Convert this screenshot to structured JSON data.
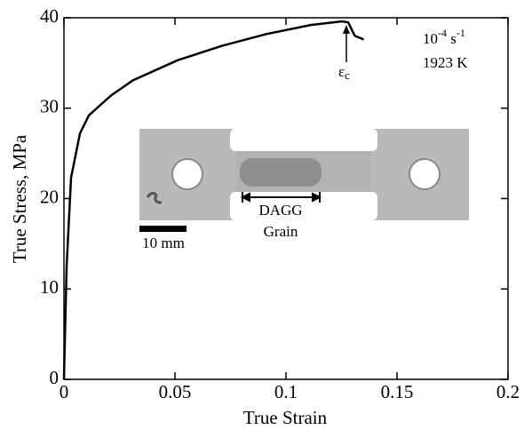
{
  "chart_data": {
    "type": "line",
    "x_label": "True Strain",
    "y_label": "True Stress, MPa",
    "x": [
      0,
      0.0012,
      0.0032,
      0.0072,
      0.0112,
      0.0212,
      0.0312,
      0.0512,
      0.0712,
      0.0912,
      0.1112,
      0.1252,
      0.128,
      0.13,
      0.131,
      0.133,
      0.135
    ],
    "values": [
      0,
      12.5,
      22.3,
      27.2,
      29.2,
      31.4,
      33.1,
      35.3,
      36.9,
      38.2,
      39.2,
      39.6,
      39.5,
      38.5,
      38.0,
      37.8,
      37.6
    ],
    "color": "#000000",
    "xlim": [
      0,
      0.2
    ],
    "xticks": [
      0,
      0.05,
      0.1,
      0.15,
      0.2
    ],
    "ylim": [
      0,
      40
    ],
    "yticks": [
      0,
      10,
      20,
      30,
      40
    ],
    "strain_rate": [
      "10",
      "-4",
      " s",
      "-1"
    ],
    "temperature": "1923 K",
    "critical_strain": [
      "ε",
      "c"
    ],
    "inset_labels": {
      "grain_top": "DAGG",
      "grain_bottom": "Grain",
      "scale": "10 mm"
    }
  }
}
